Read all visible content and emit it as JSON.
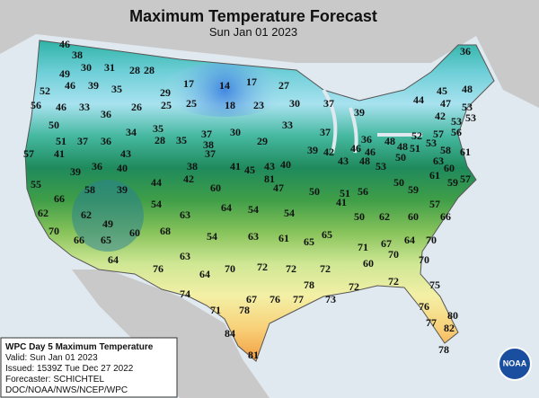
{
  "title": "Maximum Temperature Forecast",
  "subtitle": "Sun Jan 01 2023",
  "temperatures": [
    46,
    36,
    38,
    30,
    31,
    28,
    28,
    49,
    46,
    39,
    35,
    17,
    14,
    17,
    27,
    45,
    48,
    52,
    29,
    56,
    46,
    33,
    36,
    26,
    25,
    25,
    18,
    23,
    30,
    37,
    39,
    44,
    47,
    53,
    50,
    42,
    53,
    53,
    34,
    35,
    37,
    30,
    33,
    37,
    51,
    37,
    36,
    28,
    35,
    38,
    29,
    36,
    48,
    46,
    48,
    52,
    57,
    56,
    57,
    41,
    43,
    37,
    39,
    42,
    46,
    50,
    51,
    58,
    53,
    38,
    41,
    45,
    43,
    40,
    43,
    48,
    53,
    61,
    39,
    36,
    40,
    60,
    63,
    55,
    44,
    42,
    50,
    59,
    61,
    60,
    47,
    50,
    51,
    56,
    57,
    66,
    58,
    39,
    54,
    41,
    59,
    62,
    62,
    64,
    54,
    54,
    57,
    66,
    70,
    60,
    49,
    63,
    50,
    62,
    60,
    66,
    68,
    54,
    63,
    61,
    65,
    65,
    64,
    70,
    71,
    67,
    65,
    63,
    64,
    60,
    70,
    70,
    76,
    64,
    70,
    72,
    72,
    72,
    72,
    75,
    78,
    74,
    67,
    76,
    77,
    73,
    72,
    71,
    78,
    76,
    77,
    80,
    82,
    84,
    81,
    78,
    81
  ],
  "legend": {
    "lines": [
      "WPC Day 5 Maximum Temperature",
      "Valid: Sun Jan 01 2023",
      "Issued: 1539Z Tue Dec 27 2022",
      "Forecaster: SCHICHTEL",
      "DOC/NOAA/NWS/NCEP/WPC"
    ]
  },
  "logo": "NOAA"
}
